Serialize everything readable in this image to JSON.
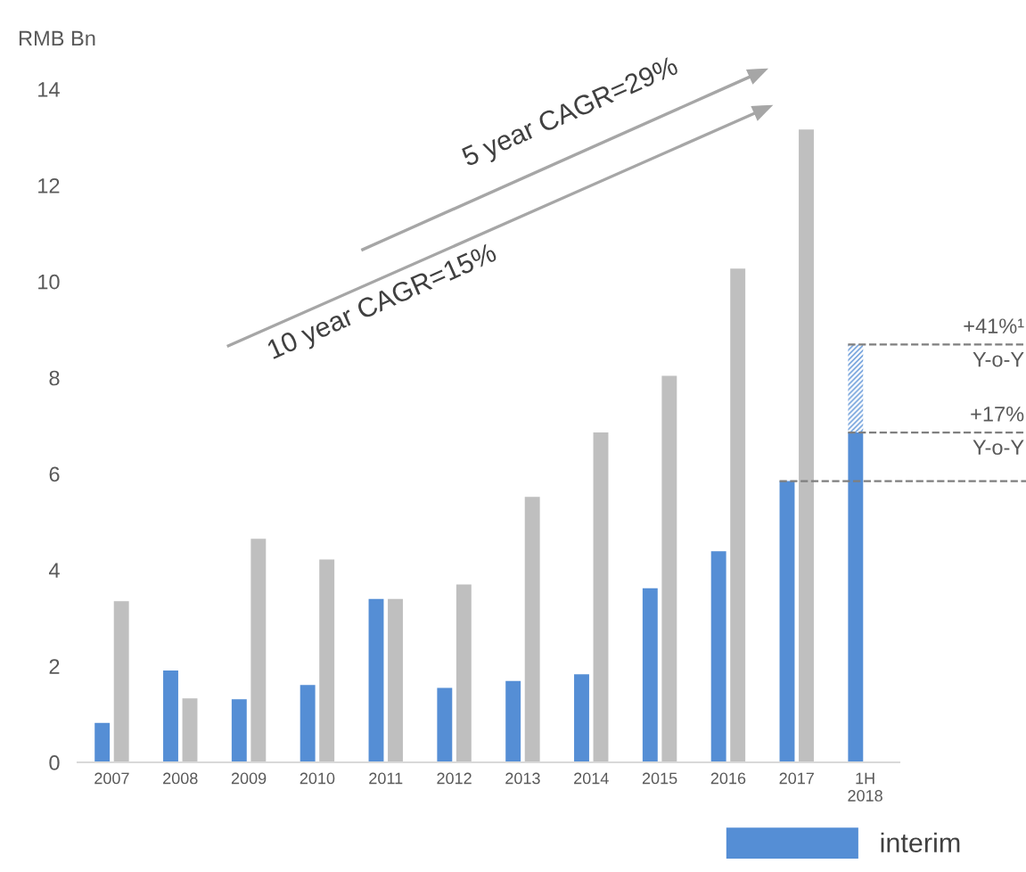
{
  "chart_data": {
    "type": "bar",
    "ylabel": "RMB Bn",
    "categories": [
      "2007",
      "2008",
      "2009",
      "2010",
      "2011",
      "2012",
      "2013",
      "2014",
      "2015",
      "2016",
      "2017",
      "1H\n2018"
    ],
    "series": [
      {
        "name": "interim",
        "color": "#558ed5",
        "values": [
          0.82,
          1.91,
          1.31,
          1.61,
          3.4,
          1.55,
          1.69,
          1.83,
          3.62,
          4.39,
          5.85,
          6.86
        ]
      },
      {
        "color": "#bfbfbf",
        "values": [
          3.35,
          1.33,
          4.65,
          4.22,
          3.4,
          3.7,
          5.52,
          6.86,
          8.04,
          10.27,
          13.16,
          null
        ]
      },
      {
        "color": "#558ed5",
        "values": [
          null,
          null,
          null,
          null,
          null,
          null,
          null,
          null,
          null,
          null,
          null,
          1.83
        ],
        "base": [
          null,
          null,
          null,
          null,
          null,
          null,
          null,
          null,
          null,
          null,
          null,
          6.86
        ]
      }
    ],
    "ylim": [
      0,
      14
    ],
    "yticks": [
      0,
      2,
      4,
      6,
      8,
      10,
      12,
      14
    ],
    "ref_lines": [
      {
        "axis": "y",
        "value": 8.69,
        "label": "+41%¹\nY-o-Y",
        "line_style": "dashed",
        "color": "#7f7f7f"
      },
      {
        "axis": "y",
        "value": 6.86,
        "label": "+17%\nY-o-Y",
        "line_style": "dashed",
        "color": "#7f7f7f"
      },
      {
        "axis": "y",
        "value": 5.85,
        "label": null,
        "line_style": "dashed",
        "color": "#7f7f7f"
      }
    ],
    "annotations": [
      "5 year CAGR=29%",
      "10 year CAGR=15%"
    ],
    "grid": false,
    "legend": "bottom"
  }
}
